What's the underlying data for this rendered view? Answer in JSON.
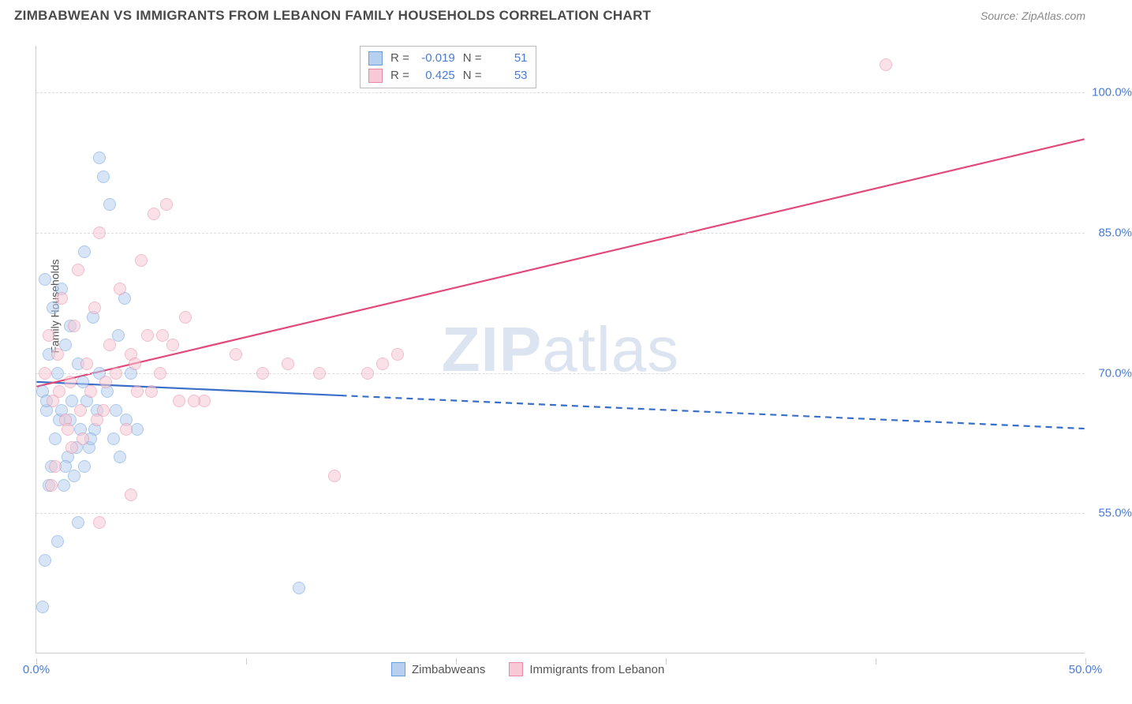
{
  "header": {
    "title": "ZIMBABWEAN VS IMMIGRANTS FROM LEBANON FAMILY HOUSEHOLDS CORRELATION CHART",
    "source": "Source: ZipAtlas.com"
  },
  "ylabel": "Family Households",
  "watermark": {
    "bold": "ZIP",
    "light": "atlas"
  },
  "chart": {
    "type": "scatter",
    "background_color": "#ffffff",
    "grid_color": "#dddddd",
    "axis_color": "#cccccc",
    "label_color": "#4a7bd4",
    "xlim": [
      0,
      50
    ],
    "ylim": [
      40,
      105
    ],
    "ytick_values": [
      55.0,
      70.0,
      85.0,
      100.0
    ],
    "ytick_labels": [
      "55.0%",
      "70.0%",
      "85.0%",
      "100.0%"
    ],
    "xtick_values": [
      0,
      10,
      20,
      30,
      40,
      50
    ],
    "xtick_labels": [
      "0.0%",
      "50.0%"
    ],
    "xtick_label_positions": [
      0,
      50
    ],
    "marker_radius": 8,
    "marker_opacity": 0.55,
    "line_width": 2.2
  },
  "series": [
    {
      "name": "Zimbabweans",
      "color_fill": "#b8d0ef",
      "color_border": "#6a9edb",
      "color_line": "#3a6fc7",
      "r_label": "R =",
      "r_value": "-0.019",
      "n_label": "N =",
      "n_value": "51",
      "trend": {
        "x1": 0,
        "y1": 69,
        "x2": 50,
        "y2": 64,
        "dashed_from_x": 14.5
      },
      "points": [
        [
          0.3,
          68
        ],
        [
          0.4,
          80
        ],
        [
          0.5,
          66
        ],
        [
          0.6,
          72
        ],
        [
          0.7,
          60
        ],
        [
          0.8,
          77
        ],
        [
          0.9,
          63
        ],
        [
          1.0,
          70
        ],
        [
          1.1,
          65
        ],
        [
          1.2,
          79
        ],
        [
          1.3,
          58
        ],
        [
          1.4,
          73
        ],
        [
          1.5,
          61
        ],
        [
          1.6,
          75
        ],
        [
          1.7,
          67
        ],
        [
          1.8,
          59
        ],
        [
          2.0,
          71
        ],
        [
          2.1,
          64
        ],
        [
          2.2,
          69
        ],
        [
          2.3,
          83
        ],
        [
          2.5,
          62
        ],
        [
          2.7,
          76
        ],
        [
          2.9,
          66
        ],
        [
          3.0,
          93
        ],
        [
          3.2,
          91
        ],
        [
          3.4,
          68
        ],
        [
          3.5,
          88
        ],
        [
          3.7,
          63
        ],
        [
          3.9,
          74
        ],
        [
          4.0,
          61
        ],
        [
          4.2,
          78
        ],
        [
          4.5,
          70
        ],
        [
          0.3,
          45
        ],
        [
          0.4,
          50
        ],
        [
          1.0,
          52
        ],
        [
          2.0,
          54
        ],
        [
          0.6,
          58
        ],
        [
          1.4,
          60
        ],
        [
          2.8,
          64
        ],
        [
          4.8,
          64
        ],
        [
          0.5,
          67
        ],
        [
          3.0,
          70
        ],
        [
          1.6,
          65
        ],
        [
          1.9,
          62
        ],
        [
          2.3,
          60
        ],
        [
          12.5,
          47
        ],
        [
          2.4,
          67
        ],
        [
          1.2,
          66
        ],
        [
          2.6,
          63
        ],
        [
          3.8,
          66
        ],
        [
          4.3,
          65
        ]
      ]
    },
    {
      "name": "Immigrants from Lebanon",
      "color_fill": "#f7c8d5",
      "color_border": "#e68aa3",
      "color_line": "#e14a7a",
      "r_label": "R =",
      "r_value": "0.425",
      "n_label": "N =",
      "n_value": "53",
      "trend": {
        "x1": 0,
        "y1": 68.5,
        "x2": 50,
        "y2": 95,
        "dashed_from_x": null
      },
      "points": [
        [
          0.4,
          70
        ],
        [
          0.6,
          74
        ],
        [
          0.8,
          67
        ],
        [
          1.0,
          72
        ],
        [
          1.2,
          78
        ],
        [
          1.4,
          65
        ],
        [
          1.6,
          69
        ],
        [
          1.8,
          75
        ],
        [
          2.0,
          81
        ],
        [
          2.2,
          63
        ],
        [
          2.4,
          71
        ],
        [
          2.6,
          68
        ],
        [
          2.8,
          77
        ],
        [
          3.0,
          85
        ],
        [
          3.2,
          66
        ],
        [
          3.5,
          73
        ],
        [
          3.8,
          70
        ],
        [
          4.0,
          79
        ],
        [
          4.3,
          64
        ],
        [
          4.5,
          72
        ],
        [
          4.8,
          68
        ],
        [
          5.0,
          82
        ],
        [
          5.3,
          74
        ],
        [
          5.6,
          87
        ],
        [
          5.9,
          70
        ],
        [
          6.2,
          88
        ],
        [
          6.5,
          73
        ],
        [
          6.8,
          67
        ],
        [
          7.1,
          76
        ],
        [
          3.0,
          54
        ],
        [
          4.5,
          57
        ],
        [
          0.9,
          60
        ],
        [
          1.7,
          62
        ],
        [
          2.9,
          65
        ],
        [
          0.7,
          58
        ],
        [
          1.5,
          64
        ],
        [
          8.0,
          67
        ],
        [
          9.5,
          72
        ],
        [
          10.8,
          70
        ],
        [
          12.0,
          71
        ],
        [
          13.5,
          70
        ],
        [
          14.2,
          59
        ],
        [
          15.8,
          70
        ],
        [
          16.5,
          71
        ],
        [
          17.2,
          72
        ],
        [
          40.5,
          103
        ],
        [
          1.1,
          68
        ],
        [
          2.1,
          66
        ],
        [
          3.3,
          69
        ],
        [
          4.7,
          71
        ],
        [
          5.5,
          68
        ],
        [
          6.0,
          74
        ],
        [
          7.5,
          67
        ]
      ]
    }
  ],
  "legend_bottom": {
    "item1": "Zimbabweans",
    "item2": "Immigrants from Lebanon"
  }
}
